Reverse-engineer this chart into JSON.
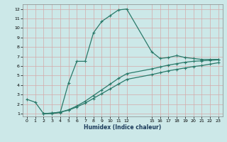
{
  "xlabel": "Humidex (Indice chaleur)",
  "bg_color": "#cce8e8",
  "grid_color": "#d4aaaa",
  "line_color": "#2a7a6a",
  "line1_x": [
    0,
    1,
    2,
    3,
    4,
    5,
    6,
    7,
    8,
    9,
    10,
    11,
    12,
    15,
    16,
    17,
    18,
    19,
    20,
    21,
    22,
    23
  ],
  "line1_y": [
    2.5,
    2.2,
    1.0,
    1.0,
    1.1,
    4.2,
    6.5,
    6.5,
    9.5,
    10.7,
    11.3,
    11.9,
    12.0,
    7.5,
    6.8,
    6.9,
    7.1,
    6.9,
    6.8,
    6.7,
    6.7,
    6.7
  ],
  "line2_x": [
    2,
    3,
    4,
    5,
    6,
    7,
    8,
    9,
    10,
    11,
    12,
    15,
    16,
    17,
    18,
    19,
    20,
    21,
    22,
    23
  ],
  "line2_y": [
    1.0,
    1.05,
    1.15,
    1.4,
    1.8,
    2.3,
    2.9,
    3.5,
    4.1,
    4.7,
    5.2,
    5.7,
    5.9,
    6.1,
    6.25,
    6.4,
    6.5,
    6.55,
    6.6,
    6.65
  ],
  "line3_x": [
    2,
    3,
    4,
    5,
    6,
    7,
    8,
    9,
    10,
    11,
    12,
    15,
    16,
    17,
    18,
    19,
    20,
    21,
    22,
    23
  ],
  "line3_y": [
    1.0,
    1.05,
    1.15,
    1.35,
    1.7,
    2.1,
    2.6,
    3.1,
    3.6,
    4.1,
    4.6,
    5.1,
    5.3,
    5.5,
    5.65,
    5.8,
    5.95,
    6.05,
    6.2,
    6.35
  ],
  "ylim": [
    0.7,
    12.5
  ],
  "xlim": [
    -0.5,
    23.5
  ],
  "yticks": [
    1,
    2,
    3,
    4,
    5,
    6,
    7,
    8,
    9,
    10,
    11,
    12
  ],
  "xticks": [
    0,
    1,
    2,
    3,
    4,
    5,
    6,
    7,
    8,
    9,
    10,
    11,
    12,
    15,
    16,
    17,
    18,
    19,
    20,
    21,
    22,
    23
  ]
}
